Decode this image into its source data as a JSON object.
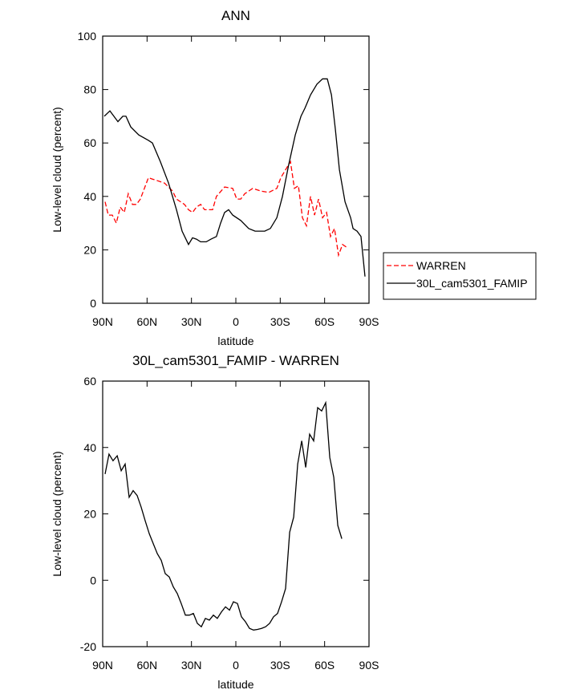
{
  "chart_data": [
    {
      "type": "line",
      "title": "ANN",
      "x_label": "latitude",
      "y_label": "Low-level cloud (percent)",
      "xlim": [
        90,
        -90
      ],
      "ylim": [
        0,
        100
      ],
      "xticks": [
        {
          "value": 90,
          "label": "90N"
        },
        {
          "value": 60,
          "label": "60N"
        },
        {
          "value": 30,
          "label": "30N"
        },
        0,
        {
          "value": -30,
          "label": "30S"
        },
        {
          "value": -60,
          "label": "60S"
        },
        {
          "value": -90,
          "label": "90S"
        }
      ],
      "yticks": [
        0,
        20,
        40,
        60,
        80,
        100
      ],
      "legend": "right",
      "series": [
        {
          "name": "WARREN",
          "color": "#ff0000",
          "dash": true,
          "x": [
            88.4,
            86.2,
            83.5,
            80.8,
            78.1,
            75.4,
            72.7,
            69.9,
            67.2,
            64.5,
            61.8,
            59.1,
            56.4,
            53.7,
            48.2,
            42.8,
            40.1,
            34.7,
            32.0,
            29.3,
            26.6,
            23.8,
            21.1,
            18.4,
            15.7,
            13.1,
            7.6,
            2.1,
            -0.6,
            -3.3,
            -6.0,
            -11.4,
            -16.8,
            -22.3,
            -27.7,
            -30.4,
            -34.7,
            -36.9,
            -39.6,
            -42.3,
            -45.0,
            -47.7,
            -50.5,
            -53.2,
            -55.9,
            -58.6,
            -61.3,
            -64.0,
            -66.7,
            -69.4,
            -72.1,
            -74.8
          ],
          "values": [
            38,
            33,
            33,
            30,
            36,
            34,
            41,
            37,
            37,
            39,
            43,
            47,
            46.5,
            46,
            45,
            42,
            39,
            37,
            35,
            34,
            36,
            37,
            35,
            35,
            35,
            40,
            43.5,
            43,
            39,
            39,
            41,
            43,
            42,
            41.5,
            43,
            47,
            51,
            53,
            43,
            44,
            32,
            29,
            40,
            33,
            39,
            32,
            34,
            25,
            28,
            18,
            22,
            21
          ]
        },
        {
          "name": "30L_cam5301_FAMIP",
          "color": "#000000",
          "dash": false,
          "x": [
            88.9,
            85.1,
            79.7,
            76.4,
            74.3,
            71.0,
            65.6,
            59.1,
            56.4,
            51.0,
            45.5,
            40.1,
            36.3,
            32.0,
            29.3,
            26.6,
            23.8,
            20.0,
            16.8,
            13.1,
            10.3,
            7.6,
            4.9,
            2.1,
            -3.3,
            -8.7,
            -13.0,
            -19.5,
            -23.3,
            -27.7,
            -31.5,
            -35.8,
            -40.2,
            -44.0,
            -46.7,
            -50.5,
            -54.8,
            -58.6,
            -61.8,
            -64.6,
            -67.3,
            -70.0,
            -73.8,
            -77.6,
            -79.2,
            -81.9,
            -84.6,
            -87.3
          ],
          "values": [
            70,
            72,
            68,
            70,
            70,
            66,
            63,
            61,
            60,
            53,
            45,
            35,
            27,
            22,
            24.5,
            24,
            23,
            23,
            24,
            25,
            30,
            34,
            35,
            33,
            31,
            28,
            27,
            27,
            28,
            32,
            40,
            52,
            63,
            70,
            73,
            78,
            82,
            84,
            84,
            78,
            65,
            50,
            38,
            32,
            28,
            27,
            25,
            10
          ]
        }
      ]
    },
    {
      "type": "line",
      "title": "30L_cam5301_FAMIP - WARREN",
      "x_label": "latitude",
      "y_label": "Low-level cloud (percent)",
      "xlim": [
        90,
        -90
      ],
      "ylim": [
        -20,
        60
      ],
      "xticks": [
        {
          "value": 90,
          "label": "90N"
        },
        {
          "value": 60,
          "label": "60N"
        },
        {
          "value": 30,
          "label": "30N"
        },
        0,
        {
          "value": -30,
          "label": "30S"
        },
        {
          "value": -60,
          "label": "60S"
        },
        {
          "value": -90,
          "label": "90S"
        }
      ],
      "yticks": [
        -20,
        0,
        20,
        40,
        60
      ],
      "series": [
        {
          "color": "#000000",
          "dash": false,
          "x": [
            88.4,
            85.7,
            83.0,
            80.2,
            77.5,
            74.8,
            72.1,
            69.4,
            66.7,
            64.0,
            61.3,
            58.5,
            55.8,
            53.1,
            50.4,
            47.7,
            45.0,
            42.3,
            39.6,
            36.9,
            34.1,
            31.4,
            28.7,
            26.0,
            23.3,
            20.6,
            17.9,
            15.2,
            12.5,
            9.7,
            7.0,
            4.3,
            1.6,
            -1.1,
            -3.8,
            -6.5,
            -9.2,
            -12.0,
            -14.7,
            -17.4,
            -20.1,
            -22.8,
            -25.5,
            -28.2,
            -30.9,
            -33.6,
            -36.4,
            -39.1,
            -41.8,
            -44.5,
            -47.2,
            -49.9,
            -52.6,
            -55.3,
            -58.0,
            -60.7,
            -63.5,
            -66.2,
            -68.9,
            -71.6
          ],
          "values": [
            32,
            38,
            36,
            37.5,
            33,
            35,
            25,
            27,
            25.5,
            22,
            18,
            14,
            11,
            8,
            6,
            2,
            1,
            -2,
            -4,
            -7,
            -10.5,
            -10.5,
            -10,
            -13,
            -14,
            -11.5,
            -12,
            -10.5,
            -11.5,
            -9.5,
            -8,
            -9,
            -6.5,
            -7,
            -11,
            -12.5,
            -14.5,
            -15,
            -14.8,
            -14.5,
            -14,
            -13,
            -11,
            -10,
            -6.5,
            -2.5,
            14.5,
            19,
            35,
            42,
            34,
            44,
            42,
            52,
            51,
            53.5,
            37,
            31,
            16.5,
            12.5
          ]
        }
      ]
    }
  ]
}
